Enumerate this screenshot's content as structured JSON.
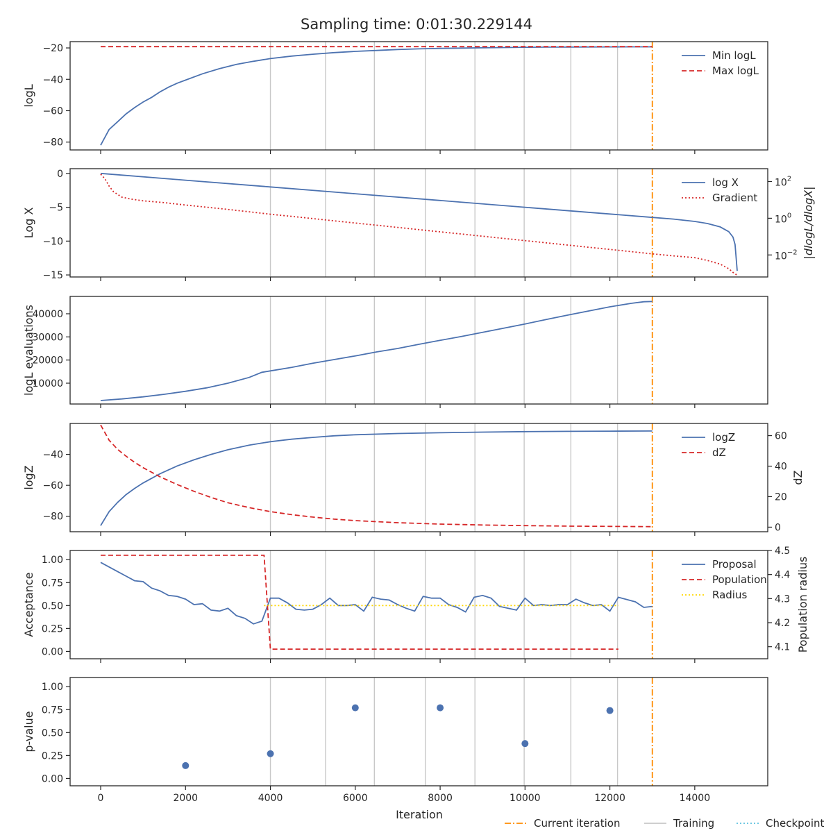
{
  "figure": {
    "title": "Sampling time: 0:01:30.229144",
    "xlabel": "Iteration",
    "x_ticks": [
      0,
      2000,
      4000,
      6000,
      8000,
      10000,
      12000,
      14000
    ],
    "xlim": [
      -720,
      15720
    ],
    "current_iteration": 13000,
    "training_iterations": [
      4000,
      5300,
      6450,
      7650,
      8820,
      9980,
      11080,
      12180
    ],
    "checkpoint_iterations": [],
    "colors": {
      "blue": "#4c72b0",
      "red": "#d62728",
      "orange": "#ff8c00",
      "yellow": "#ffd700",
      "grey": "#c8c8c8",
      "cyan": "#5bc0de"
    },
    "bottom_legend": [
      {
        "label": "Current iteration",
        "style": "dashdot",
        "color": "#ff8c00"
      },
      {
        "label": "Training",
        "style": "solid",
        "color": "#c8c8c8"
      },
      {
        "label": "Checkpoint",
        "style": "dotted",
        "color": "#5bc0de"
      }
    ]
  },
  "chart_data": [
    {
      "type": "line",
      "ylabel": "logL",
      "ylim": [
        -85,
        -16
      ],
      "y_ticks": [
        -80,
        -60,
        -40,
        -20
      ],
      "legend": "top-right",
      "series": [
        {
          "name": "Min logL",
          "style": "solid",
          "color": "#4c72b0",
          "x": [
            0,
            200,
            400,
            600,
            800,
            1000,
            1200,
            1400,
            1600,
            1800,
            2000,
            2400,
            2800,
            3200,
            3600,
            4000,
            4500,
            5000,
            5500,
            6000,
            6500,
            7000,
            7500,
            8000,
            8500,
            9000,
            9500,
            10000,
            10500,
            11000,
            11500,
            12000,
            12500,
            13000
          ],
          "y": [
            -82,
            -72,
            -67,
            -62,
            -58,
            -54.5,
            -51.5,
            -48,
            -45,
            -42.5,
            -40.5,
            -36.5,
            -33.2,
            -30.5,
            -28.5,
            -26.8,
            -25.2,
            -24,
            -23,
            -22.2,
            -21.6,
            -21,
            -20.6,
            -20.3,
            -20.1,
            -19.9,
            -19.75,
            -19.6,
            -19.5,
            -19.45,
            -19.4,
            -19.35,
            -19.3,
            -19.3
          ]
        },
        {
          "name": "Max logL",
          "style": "dashed",
          "color": "#d62728",
          "x": [
            0,
            13000
          ],
          "y": [
            -19.2,
            -19.2
          ]
        }
      ]
    },
    {
      "type": "line",
      "ylabel": "Log X",
      "ylim": [
        -15.3,
        0.7
      ],
      "y_ticks": [
        0,
        -5,
        -10,
        -15
      ],
      "y2label": "|dlogL/dlogX|",
      "y2_scale": "log",
      "y2lim_log10": [
        -3.2,
        2.7
      ],
      "y2_ticks": [
        "10^2",
        "10^0",
        "10^-2"
      ],
      "legend": "top-right",
      "series": [
        {
          "name": "log X",
          "style": "solid",
          "color": "#4c72b0",
          "axis": "left",
          "x": [
            0,
            2000,
            4000,
            6000,
            8000,
            10000,
            12000,
            13000,
            13500,
            14000,
            14300,
            14600,
            14800,
            14900,
            14950,
            15000
          ],
          "y": [
            0,
            -1,
            -2,
            -3,
            -4,
            -5,
            -6,
            -6.5,
            -6.75,
            -7.1,
            -7.4,
            -7.9,
            -8.6,
            -9.4,
            -10.5,
            -14.4
          ]
        },
        {
          "name": "Gradient",
          "style": "dotted",
          "color": "#d62728",
          "axis": "right",
          "x": [
            0,
            100,
            200,
            300,
            500,
            700,
            1000,
            1500,
            2000,
            2500,
            3000,
            3500,
            4000,
            4500,
            5000,
            5500,
            6000,
            6500,
            7000,
            7500,
            8000,
            8500,
            9000,
            9500,
            10000,
            10500,
            11000,
            11500,
            12000,
            12500,
            13000,
            13500,
            14000,
            14300,
            14600,
            14800,
            14900,
            15000
          ],
          "log10_y": [
            2.4,
            2.15,
            1.75,
            1.45,
            1.15,
            1.05,
            0.95,
            0.85,
            0.72,
            0.6,
            0.48,
            0.35,
            0.22,
            0.1,
            -0.02,
            -0.14,
            -0.26,
            -0.38,
            -0.5,
            -0.62,
            -0.74,
            -0.86,
            -0.98,
            -1.1,
            -1.22,
            -1.34,
            -1.46,
            -1.58,
            -1.7,
            -1.82,
            -1.94,
            -2.05,
            -2.15,
            -2.3,
            -2.5,
            -2.75,
            -2.95,
            -3.1
          ]
        }
      ]
    },
    {
      "type": "line",
      "ylabel": "logL evaluations",
      "ylim": [
        1000,
        47500
      ],
      "y_ticks": [
        10000,
        20000,
        30000,
        40000
      ],
      "series": [
        {
          "name": "",
          "style": "solid",
          "color": "#4c72b0",
          "x": [
            0,
            500,
            1000,
            1500,
            2000,
            2500,
            3000,
            3500,
            3800,
            4000,
            4500,
            5000,
            5500,
            6000,
            6500,
            7000,
            7500,
            8000,
            8500,
            9000,
            9500,
            10000,
            10500,
            11000,
            11500,
            12000,
            12500,
            12800,
            13000
          ],
          "y": [
            2500,
            3200,
            4100,
            5200,
            6500,
            8000,
            10000,
            12500,
            14700,
            15300,
            16800,
            18600,
            20200,
            21800,
            23500,
            25000,
            26800,
            28500,
            30200,
            32000,
            33800,
            35600,
            37500,
            39400,
            41200,
            43000,
            44500,
            45200,
            45300
          ]
        }
      ]
    },
    {
      "type": "line",
      "ylabel": "logZ",
      "ylim": [
        -90,
        -20
      ],
      "y_ticks": [
        -40,
        -60,
        -80
      ],
      "y2label": "dZ",
      "y2lim": [
        -3,
        68
      ],
      "y2_ticks": [
        0,
        20,
        40,
        60
      ],
      "legend": "top-right",
      "series": [
        {
          "name": "logZ",
          "style": "solid",
          "color": "#4c72b0",
          "axis": "left",
          "x": [
            0,
            200,
            400,
            600,
            800,
            1000,
            1400,
            1800,
            2200,
            2600,
            3000,
            3500,
            4000,
            4500,
            5000,
            5500,
            6000,
            7000,
            8000,
            9000,
            10000,
            11000,
            12000,
            13000
          ],
          "y": [
            -86,
            -77,
            -71,
            -66,
            -62,
            -58.5,
            -52.5,
            -47.5,
            -43.5,
            -40,
            -37,
            -34,
            -31.8,
            -30.2,
            -29,
            -28,
            -27.3,
            -26.5,
            -26,
            -25.6,
            -25.3,
            -25.1,
            -25,
            -24.9
          ]
        },
        {
          "name": "dZ",
          "style": "dashed",
          "color": "#d62728",
          "axis": "right",
          "x": [
            0,
            200,
            400,
            600,
            800,
            1000,
            1400,
            1800,
            2200,
            2600,
            3000,
            3500,
            4000,
            4500,
            5000,
            5500,
            6000,
            7000,
            8000,
            9000,
            10000,
            11000,
            12000,
            13000
          ],
          "y": [
            67,
            57,
            51,
            46.5,
            42.5,
            39,
            33,
            28,
            23.5,
            19.5,
            16,
            12.8,
            10.2,
            8.2,
            6.6,
            5.3,
            4.3,
            2.9,
            2,
            1.4,
            1,
            0.7,
            0.5,
            0.3
          ]
        }
      ]
    },
    {
      "type": "line",
      "ylabel": "Acceptance",
      "ylim": [
        -0.08,
        1.1
      ],
      "y_ticks": [
        0.0,
        0.25,
        0.5,
        0.75,
        1.0
      ],
      "y_tick_labels": [
        "0.00",
        "0.25",
        "0.50",
        "0.75",
        "1.00"
      ],
      "y2label": "Population radius",
      "y2lim": [
        4.05,
        4.5
      ],
      "y2_ticks": [
        4.1,
        4.2,
        4.3,
        4.4,
        4.5
      ],
      "legend": "top-right",
      "series": [
        {
          "name": "Proposal",
          "style": "solid",
          "color": "#4c72b0",
          "axis": "left",
          "x": [
            0,
            200,
            400,
            600,
            800,
            1000,
            1200,
            1400,
            1600,
            1800,
            2000,
            2200,
            2400,
            2600,
            2800,
            3000,
            3200,
            3400,
            3600,
            3800,
            4000,
            4200,
            4400,
            4600,
            4800,
            5000,
            5200,
            5400,
            5600,
            5800,
            6000,
            6200,
            6400,
            6600,
            6800,
            7000,
            7200,
            7400,
            7600,
            7800,
            8000,
            8200,
            8400,
            8600,
            8800,
            9000,
            9200,
            9400,
            9600,
            9800,
            10000,
            10200,
            10400,
            10600,
            10800,
            11000,
            11200,
            11400,
            11600,
            11800,
            12000,
            12200,
            12600,
            12800,
            13000
          ],
          "y": [
            0.97,
            0.92,
            0.87,
            0.82,
            0.77,
            0.76,
            0.69,
            0.66,
            0.61,
            0.6,
            0.57,
            0.51,
            0.52,
            0.45,
            0.44,
            0.47,
            0.39,
            0.36,
            0.3,
            0.33,
            0.58,
            0.58,
            0.53,
            0.46,
            0.45,
            0.46,
            0.51,
            0.58,
            0.5,
            0.5,
            0.51,
            0.44,
            0.59,
            0.57,
            0.56,
            0.51,
            0.47,
            0.44,
            0.6,
            0.58,
            0.58,
            0.51,
            0.48,
            0.43,
            0.59,
            0.61,
            0.58,
            0.49,
            0.47,
            0.45,
            0.58,
            0.5,
            0.51,
            0.5,
            0.51,
            0.51,
            0.57,
            0.53,
            0.5,
            0.51,
            0.44,
            0.59,
            0.54,
            0.48,
            0.49
          ]
        },
        {
          "name": "Population",
          "style": "dashed",
          "color": "#d62728",
          "axis": "right",
          "x": [
            0,
            3850,
            4000,
            12200
          ],
          "y": [
            4.48,
            4.48,
            4.09,
            4.09
          ]
        },
        {
          "name": "Radius",
          "style": "dotted",
          "color": "#ffd700",
          "axis": "left",
          "x": [
            3850,
            12200
          ],
          "y": [
            0.5,
            0.5
          ]
        }
      ]
    },
    {
      "type": "scatter",
      "ylabel": "p-value",
      "ylim": [
        -0.08,
        1.1
      ],
      "y_ticks": [
        0.0,
        0.25,
        0.5,
        0.75,
        1.0
      ],
      "y_tick_labels": [
        "0.00",
        "0.25",
        "0.50",
        "0.75",
        "1.00"
      ],
      "series": [
        {
          "name": "",
          "color": "#4c72b0",
          "x": [
            2000,
            4000,
            6000,
            8000,
            10000,
            12000
          ],
          "y": [
            0.14,
            0.27,
            0.77,
            0.77,
            0.38,
            0.74
          ]
        }
      ]
    }
  ]
}
